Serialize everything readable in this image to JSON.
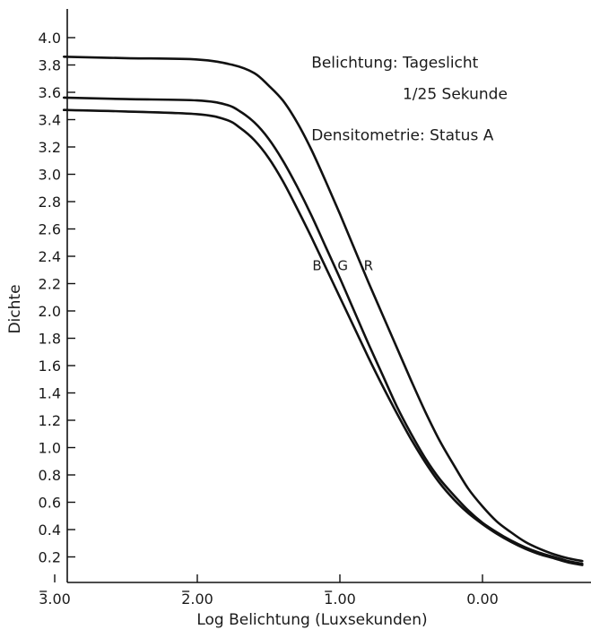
{
  "chart_data": {
    "type": "line",
    "title": "",
    "xlabel": "Log Belichtung (Luxsekunden)",
    "ylabel": "Dichte",
    "xlim": [
      -3.5,
      0.75
    ],
    "ylim": [
      0.0,
      4.15
    ],
    "x_ticks": [
      {
        "value": -3.0,
        "label": "3.00",
        "bar": true
      },
      {
        "value": -2.0,
        "label": "2.00",
        "bar": true
      },
      {
        "value": -1.0,
        "label": "1.00",
        "bar": true
      },
      {
        "value": 0.0,
        "label": "0.00",
        "bar": false
      }
    ],
    "y_ticks": [
      0.2,
      0.4,
      0.6,
      0.8,
      1.0,
      1.2,
      1.4,
      1.6,
      1.8,
      2.0,
      2.2,
      2.4,
      2.6,
      2.8,
      3.0,
      3.2,
      3.4,
      3.6,
      3.8,
      4.0
    ],
    "y_tick_labels": [
      "0.2",
      "0.4",
      "0.6",
      "0.8",
      "1.0",
      "1.2",
      "1.4",
      "1.6",
      "1.8",
      "2.0",
      "2.2",
      "2.4",
      "2.6",
      "2.8",
      "3.0",
      "3.2",
      "3.4",
      "3.6",
      "3.8",
      "4.0"
    ],
    "annotations": [
      {
        "text": "Belichtung: Tageslicht",
        "x": -1.2,
        "y": 3.78
      },
      {
        "text": "1/25 Sekunde",
        "x": -0.56,
        "y": 3.55
      },
      {
        "text": "Densitometrie: Status A",
        "x": -1.2,
        "y": 3.25
      }
    ],
    "series": [
      {
        "name": "R",
        "x": [
          -3.5,
          -3.0,
          -2.5,
          -2.0,
          -1.75,
          -1.6,
          -1.5,
          -1.4,
          -1.3,
          -1.2,
          -1.1,
          -1.0,
          -0.9,
          -0.8,
          -0.7,
          -0.6,
          -0.5,
          -0.4,
          -0.3,
          -0.2,
          -0.1,
          0.0,
          0.1,
          0.2,
          0.3,
          0.4,
          0.5,
          0.6,
          0.7
        ],
        "y": [
          3.86,
          3.86,
          3.85,
          3.84,
          3.8,
          3.74,
          3.65,
          3.54,
          3.38,
          3.18,
          2.95,
          2.71,
          2.46,
          2.21,
          1.97,
          1.73,
          1.49,
          1.26,
          1.05,
          0.87,
          0.7,
          0.57,
          0.46,
          0.38,
          0.31,
          0.26,
          0.22,
          0.19,
          0.17
        ]
      },
      {
        "name": "G",
        "x": [
          -3.5,
          -3.0,
          -2.5,
          -2.0,
          -1.8,
          -1.7,
          -1.6,
          -1.5,
          -1.4,
          -1.3,
          -1.2,
          -1.1,
          -1.0,
          -0.9,
          -0.8,
          -0.7,
          -0.6,
          -0.5,
          -0.4,
          -0.3,
          -0.2,
          -0.1,
          0.0,
          0.1,
          0.2,
          0.3,
          0.4,
          0.5,
          0.6,
          0.7
        ],
        "y": [
          3.56,
          3.56,
          3.55,
          3.54,
          3.51,
          3.46,
          3.38,
          3.26,
          3.1,
          2.91,
          2.7,
          2.47,
          2.24,
          2.0,
          1.76,
          1.53,
          1.3,
          1.1,
          0.92,
          0.77,
          0.65,
          0.54,
          0.45,
          0.38,
          0.32,
          0.27,
          0.23,
          0.2,
          0.17,
          0.15
        ]
      },
      {
        "name": "B",
        "x": [
          -3.5,
          -3.0,
          -2.5,
          -2.0,
          -1.8,
          -1.7,
          -1.6,
          -1.5,
          -1.4,
          -1.3,
          -1.2,
          -1.1,
          -1.0,
          -0.9,
          -0.8,
          -0.7,
          -0.6,
          -0.5,
          -0.4,
          -0.3,
          -0.2,
          -0.1,
          0.0,
          0.1,
          0.2,
          0.3,
          0.4,
          0.5,
          0.6,
          0.7
        ],
        "y": [
          3.47,
          3.47,
          3.46,
          3.44,
          3.4,
          3.34,
          3.25,
          3.12,
          2.95,
          2.75,
          2.54,
          2.32,
          2.1,
          1.88,
          1.66,
          1.45,
          1.25,
          1.06,
          0.89,
          0.74,
          0.62,
          0.52,
          0.44,
          0.37,
          0.31,
          0.26,
          0.22,
          0.19,
          0.16,
          0.14
        ]
      }
    ],
    "curve_labels": [
      {
        "text": "B",
        "x": -1.16,
        "y": 2.3
      },
      {
        "text": "G",
        "x": -0.98,
        "y": 2.3
      },
      {
        "text": "R",
        "x": -0.8,
        "y": 2.3
      }
    ],
    "grid": false,
    "legend": "none"
  }
}
